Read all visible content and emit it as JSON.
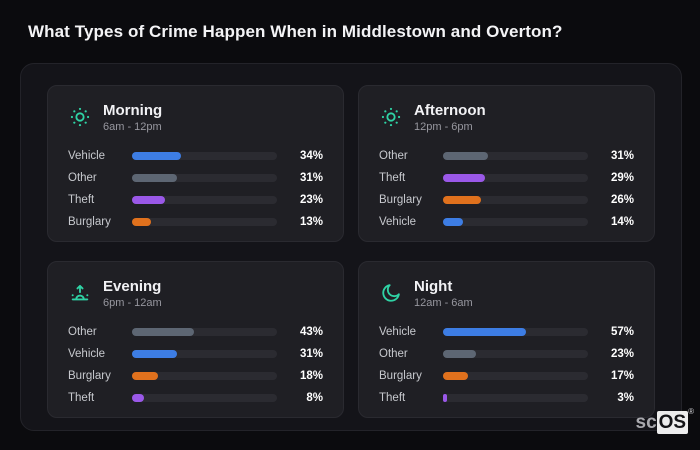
{
  "page": {
    "title": "What Types of Crime Happen When in Middlestown and Overton?"
  },
  "watermark": {
    "prefix": "sc",
    "suffix": "OS",
    "registered": "®"
  },
  "colors": {
    "page_bg": "#0b0b0e",
    "panel_bg": "#141419",
    "card_bg": "#1f1f24",
    "track_bg": "#2b2b31",
    "accent_teal": "#2fd3a5",
    "category": {
      "Vehicle": "#3d7de4",
      "Other": "#5d6673",
      "Theft": "#9a58e8",
      "Burglary": "#e0711d"
    }
  },
  "chart_data": [
    {
      "type": "bar",
      "orientation": "horizontal",
      "title": "Morning",
      "subtitle": "6am - 12pm",
      "icon": "sun-icon",
      "categories": [
        "Vehicle",
        "Other",
        "Theft",
        "Burglary"
      ],
      "values": [
        34,
        31,
        23,
        13
      ],
      "value_suffix": "%",
      "xlim": [
        0,
        100
      ],
      "grid": false,
      "legend": false
    },
    {
      "type": "bar",
      "orientation": "horizontal",
      "title": "Afternoon",
      "subtitle": "12pm - 6pm",
      "icon": "sun-icon",
      "categories": [
        "Other",
        "Theft",
        "Burglary",
        "Vehicle"
      ],
      "values": [
        31,
        29,
        26,
        14
      ],
      "value_suffix": "%",
      "xlim": [
        0,
        100
      ],
      "grid": false,
      "legend": false
    },
    {
      "type": "bar",
      "orientation": "horizontal",
      "title": "Evening",
      "subtitle": "6pm - 12am",
      "icon": "sunset-icon",
      "categories": [
        "Other",
        "Vehicle",
        "Burglary",
        "Theft"
      ],
      "values": [
        43,
        31,
        18,
        8
      ],
      "value_suffix": "%",
      "xlim": [
        0,
        100
      ],
      "grid": false,
      "legend": false
    },
    {
      "type": "bar",
      "orientation": "horizontal",
      "title": "Night",
      "subtitle": "12am - 6am",
      "icon": "moon-icon",
      "categories": [
        "Vehicle",
        "Other",
        "Burglary",
        "Theft"
      ],
      "values": [
        57,
        23,
        17,
        3
      ],
      "value_suffix": "%",
      "xlim": [
        0,
        100
      ],
      "grid": false,
      "legend": false
    }
  ]
}
